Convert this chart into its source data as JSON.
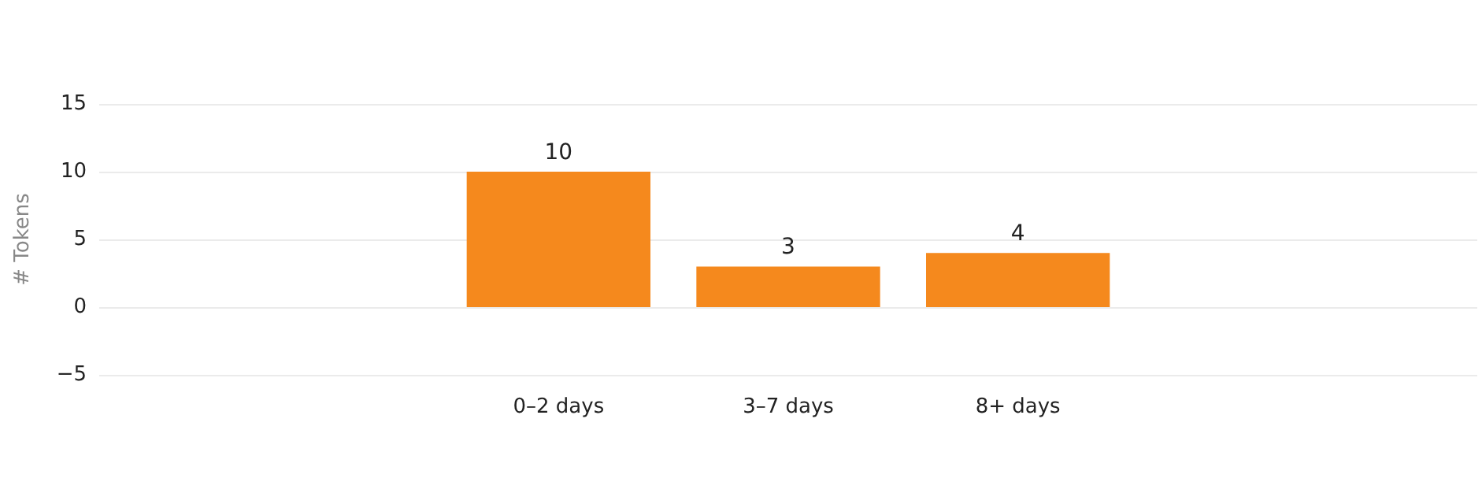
{
  "chart_data": {
    "type": "bar",
    "ylabel": "# Tokens",
    "categories": [
      null,
      null,
      "0–2 days",
      "3–7 days",
      "8+ days",
      null,
      null
    ],
    "values": [
      null,
      null,
      10,
      3,
      4,
      null,
      null
    ],
    "color": "#f5891d",
    "ylim": [
      -5,
      15
    ],
    "yticks": [
      -5,
      0,
      5,
      10,
      15
    ],
    "grid": "y",
    "data_labels": true
  }
}
